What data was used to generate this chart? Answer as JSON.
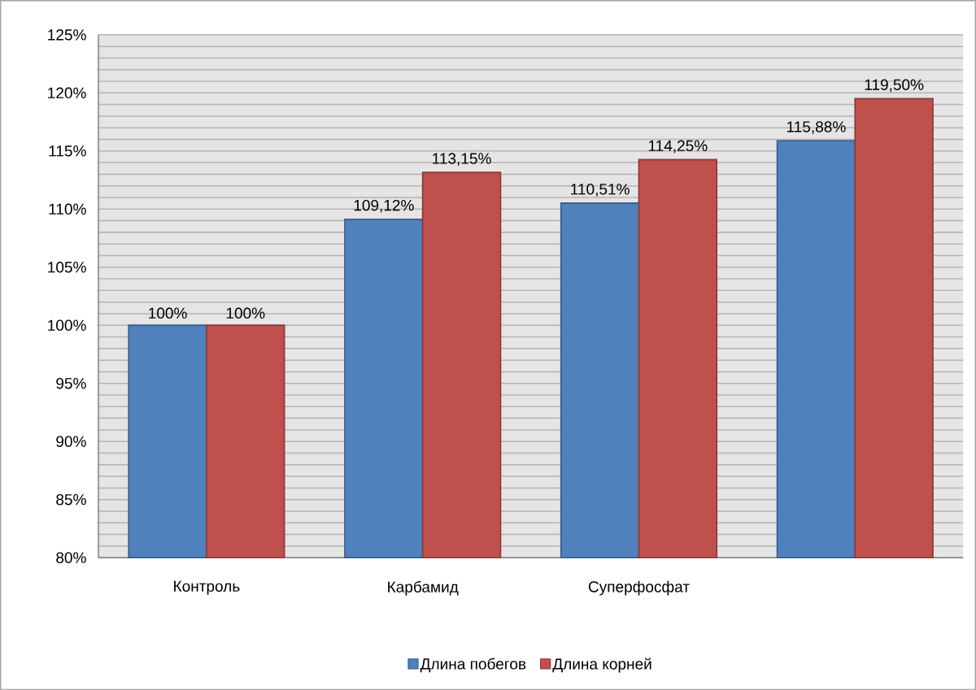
{
  "chart_data": {
    "type": "bar",
    "categories": [
      "Контроль",
      "Карбамид",
      "Суперфосфат",
      null
    ],
    "series": [
      {
        "name": "Длина побегов",
        "color": "#4f81bd",
        "values": [
          100,
          109.12,
          110.51,
          115.88
        ],
        "value_labels": [
          "100%",
          "109,12%",
          "110,51%",
          "115,88%"
        ]
      },
      {
        "name": "Длина корней",
        "color": "#c0504d",
        "values": [
          100,
          113.15,
          114.25,
          119.5
        ],
        "value_labels": [
          "100%",
          "113,15%",
          "114,25%",
          "119,50%"
        ]
      }
    ],
    "ylim": [
      80,
      125
    ],
    "yticks": [
      {
        "value": 80,
        "label": "80%"
      },
      {
        "value": 85,
        "label": "85%"
      },
      {
        "value": 90,
        "label": "90%"
      },
      {
        "value": 95,
        "label": "95%"
      },
      {
        "value": 100,
        "label": "100%"
      },
      {
        "value": 105,
        "label": "105%"
      },
      {
        "value": 110,
        "label": "110%"
      },
      {
        "value": 115,
        "label": "115%"
      },
      {
        "value": 120,
        "label": "120%"
      },
      {
        "value": 125,
        "label": "125%"
      }
    ],
    "grid": "y",
    "legend": "bottom"
  }
}
